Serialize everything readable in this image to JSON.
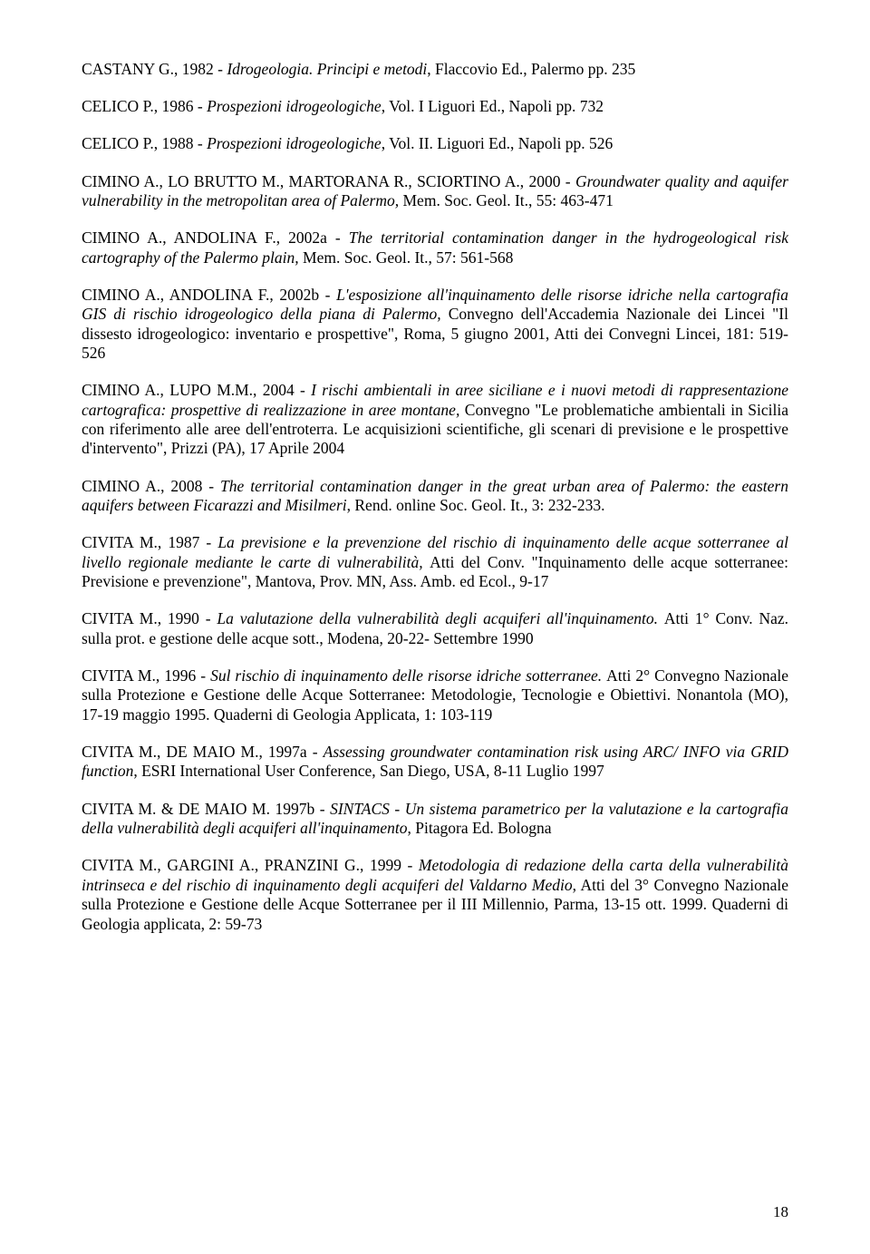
{
  "refs": [
    {
      "author": "CASTANY G., 1982 - ",
      "title": "Idrogeologia. Principi e metodi",
      "rest": ",  Flaccovio Ed., Palermo pp. 235"
    },
    {
      "author": "CELICO P., 1986 - ",
      "title": "Prospezioni idrogeologiche",
      "rest": ", Vol. I Liguori Ed., Napoli pp. 732"
    },
    {
      "author": "CELICO P., 1988 - ",
      "title": "Prospezioni idrogeologiche",
      "rest": ", Vol. II. Liguori Ed., Napoli pp. 526"
    },
    {
      "author": "CIMINO A., LO BRUTTO M., MARTORANA R., SCIORTINO A., 2000 - ",
      "title": "Groundwater quality and aquifer vulnerability in the metropolitan area of Palermo, ",
      "rest": "Mem. Soc. Geol. It., 55: 463-471"
    },
    {
      "author": "CIMINO A., ANDOLINA F., 2002a - ",
      "title": "The territorial contamination danger in the hydrogeological risk cartography of the Palermo plain, ",
      "rest": "Mem. Soc. Geol. It., 57: 561-568"
    },
    {
      "author": "CIMINO A., ANDOLINA F., 2002b - ",
      "title": "L'esposizione all'inquinamento delle risorse idriche nella cartografia GIS di rischio idrogeologico della piana di Palermo, ",
      "rest": "Convegno dell'Accademia Nazionale dei Lincei \"Il dissesto idrogeologico: inventario e prospettive\", Roma, 5 giugno 2001, Atti dei Convegni Lincei, 181: 519-526"
    },
    {
      "author": "CIMINO A., LUPO M.M., 2004 - ",
      "title": "I rischi ambientali in aree siciliane e i nuovi metodi di rappresentazione cartografica: prospettive di realizzazione in aree montane, ",
      "rest": "Convegno \"Le problematiche ambientali in Sicilia con riferimento alle aree dell'entroterra. Le acquisizioni scientifiche, gli scenari di previsione e le prospettive d'intervento\", Prizzi (PA), 17 Aprile 2004"
    },
    {
      "author": "CIMINO A., 2008 - ",
      "title": "The territorial contamination danger in the great urban area of Palermo: the eastern aquifers between Ficarazzi and Misilmeri",
      "rest": ", Rend. online Soc. Geol. It., 3: 232-233."
    },
    {
      "author": "CIVITA M., 1987 - ",
      "title": "La previsione e la prevenzione del rischio di inquinamento delle acque sotterranee al livello regionale mediante le carte di vulnerabilità, ",
      "rest": "Atti del Conv. \"Inquinamento delle acque sotterranee: Previsione e prevenzione\", Mantova, Prov. MN, Ass. Amb. ed Ecol., 9-17"
    },
    {
      "author": "CIVITA M., 1990 - ",
      "title": "La valutazione della vulnerabilità degli acquiferi all'inquinamento. ",
      "rest": "Atti 1° Conv. Naz. sulla prot. e gestione delle acque sott., Modena, 20-22- Settembre 1990"
    },
    {
      "author": "CIVITA M., 1996 - ",
      "title": "Sul rischio di inquinamento delle risorse idriche sotterranee. ",
      "rest": "Atti 2° Convegno Nazionale sulla Protezione e Gestione delle Acque Sotterranee: Metodologie, Tecnologie e Obiettivi. Nonantola (MO), 17-19 maggio 1995. Quaderni di Geologia Applicata, 1: 103-119"
    },
    {
      "author": "CIVITA M., DE MAIO M., 1997a - ",
      "title": "Assessing groundwater contamination risk using ARC/ INFO via GRID function",
      "rest": ", ESRI International User Conference, San Diego, USA, 8-11 Luglio 1997"
    },
    {
      "author": "CIVITA M. & DE MAIO M. 1997b - ",
      "title": "SINTACS - Un sistema parametrico per la valutazione e la cartografia della vulnerabilità degli acquiferi all'inquinamento",
      "rest": ", Pitagora Ed. Bologna"
    },
    {
      "author": "CIVITA M., GARGINI A., PRANZINI G., 1999 - ",
      "title": "Metodologia di redazione della carta della vulnerabilità intrinseca e del rischio di inquinamento degli acquiferi del Valdarno Medio",
      "rest": ", Atti del 3° Convegno Nazionale sulla Protezione e Gestione delle Acque Sotterranee per il III Millennio, Parma, 13-15 ott. 1999. Quaderni di Geologia applicata, 2: 59-73"
    }
  ],
  "page_number": "18"
}
